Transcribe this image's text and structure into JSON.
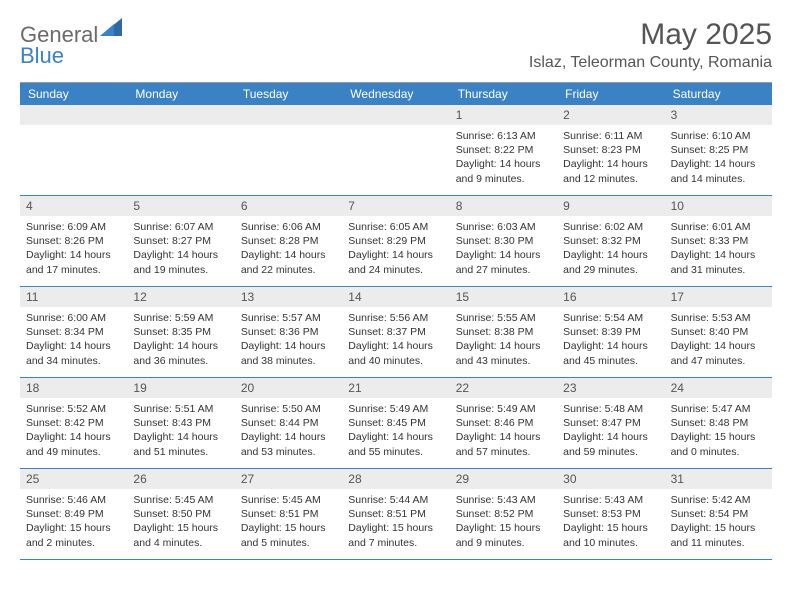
{
  "logo": {
    "line1": "General",
    "line2": "Blue"
  },
  "title": "May 2025",
  "location": "Islaz, Teleorman County, Romania",
  "colors": {
    "header_bg": "#3b82c4",
    "daynum_bg": "#ececec",
    "border": "#3b82c4",
    "text": "#333333",
    "background": "#ffffff"
  },
  "day_labels": [
    "Sunday",
    "Monday",
    "Tuesday",
    "Wednesday",
    "Thursday",
    "Friday",
    "Saturday"
  ],
  "weeks": [
    [
      null,
      null,
      null,
      null,
      {
        "n": "1",
        "sr": "Sunrise: 6:13 AM",
        "ss": "Sunset: 8:22 PM",
        "dl": "Daylight: 14 hours and 9 minutes."
      },
      {
        "n": "2",
        "sr": "Sunrise: 6:11 AM",
        "ss": "Sunset: 8:23 PM",
        "dl": "Daylight: 14 hours and 12 minutes."
      },
      {
        "n": "3",
        "sr": "Sunrise: 6:10 AM",
        "ss": "Sunset: 8:25 PM",
        "dl": "Daylight: 14 hours and 14 minutes."
      }
    ],
    [
      {
        "n": "4",
        "sr": "Sunrise: 6:09 AM",
        "ss": "Sunset: 8:26 PM",
        "dl": "Daylight: 14 hours and 17 minutes."
      },
      {
        "n": "5",
        "sr": "Sunrise: 6:07 AM",
        "ss": "Sunset: 8:27 PM",
        "dl": "Daylight: 14 hours and 19 minutes."
      },
      {
        "n": "6",
        "sr": "Sunrise: 6:06 AM",
        "ss": "Sunset: 8:28 PM",
        "dl": "Daylight: 14 hours and 22 minutes."
      },
      {
        "n": "7",
        "sr": "Sunrise: 6:05 AM",
        "ss": "Sunset: 8:29 PM",
        "dl": "Daylight: 14 hours and 24 minutes."
      },
      {
        "n": "8",
        "sr": "Sunrise: 6:03 AM",
        "ss": "Sunset: 8:30 PM",
        "dl": "Daylight: 14 hours and 27 minutes."
      },
      {
        "n": "9",
        "sr": "Sunrise: 6:02 AM",
        "ss": "Sunset: 8:32 PM",
        "dl": "Daylight: 14 hours and 29 minutes."
      },
      {
        "n": "10",
        "sr": "Sunrise: 6:01 AM",
        "ss": "Sunset: 8:33 PM",
        "dl": "Daylight: 14 hours and 31 minutes."
      }
    ],
    [
      {
        "n": "11",
        "sr": "Sunrise: 6:00 AM",
        "ss": "Sunset: 8:34 PM",
        "dl": "Daylight: 14 hours and 34 minutes."
      },
      {
        "n": "12",
        "sr": "Sunrise: 5:59 AM",
        "ss": "Sunset: 8:35 PM",
        "dl": "Daylight: 14 hours and 36 minutes."
      },
      {
        "n": "13",
        "sr": "Sunrise: 5:57 AM",
        "ss": "Sunset: 8:36 PM",
        "dl": "Daylight: 14 hours and 38 minutes."
      },
      {
        "n": "14",
        "sr": "Sunrise: 5:56 AM",
        "ss": "Sunset: 8:37 PM",
        "dl": "Daylight: 14 hours and 40 minutes."
      },
      {
        "n": "15",
        "sr": "Sunrise: 5:55 AM",
        "ss": "Sunset: 8:38 PM",
        "dl": "Daylight: 14 hours and 43 minutes."
      },
      {
        "n": "16",
        "sr": "Sunrise: 5:54 AM",
        "ss": "Sunset: 8:39 PM",
        "dl": "Daylight: 14 hours and 45 minutes."
      },
      {
        "n": "17",
        "sr": "Sunrise: 5:53 AM",
        "ss": "Sunset: 8:40 PM",
        "dl": "Daylight: 14 hours and 47 minutes."
      }
    ],
    [
      {
        "n": "18",
        "sr": "Sunrise: 5:52 AM",
        "ss": "Sunset: 8:42 PM",
        "dl": "Daylight: 14 hours and 49 minutes."
      },
      {
        "n": "19",
        "sr": "Sunrise: 5:51 AM",
        "ss": "Sunset: 8:43 PM",
        "dl": "Daylight: 14 hours and 51 minutes."
      },
      {
        "n": "20",
        "sr": "Sunrise: 5:50 AM",
        "ss": "Sunset: 8:44 PM",
        "dl": "Daylight: 14 hours and 53 minutes."
      },
      {
        "n": "21",
        "sr": "Sunrise: 5:49 AM",
        "ss": "Sunset: 8:45 PM",
        "dl": "Daylight: 14 hours and 55 minutes."
      },
      {
        "n": "22",
        "sr": "Sunrise: 5:49 AM",
        "ss": "Sunset: 8:46 PM",
        "dl": "Daylight: 14 hours and 57 minutes."
      },
      {
        "n": "23",
        "sr": "Sunrise: 5:48 AM",
        "ss": "Sunset: 8:47 PM",
        "dl": "Daylight: 14 hours and 59 minutes."
      },
      {
        "n": "24",
        "sr": "Sunrise: 5:47 AM",
        "ss": "Sunset: 8:48 PM",
        "dl": "Daylight: 15 hours and 0 minutes."
      }
    ],
    [
      {
        "n": "25",
        "sr": "Sunrise: 5:46 AM",
        "ss": "Sunset: 8:49 PM",
        "dl": "Daylight: 15 hours and 2 minutes."
      },
      {
        "n": "26",
        "sr": "Sunrise: 5:45 AM",
        "ss": "Sunset: 8:50 PM",
        "dl": "Daylight: 15 hours and 4 minutes."
      },
      {
        "n": "27",
        "sr": "Sunrise: 5:45 AM",
        "ss": "Sunset: 8:51 PM",
        "dl": "Daylight: 15 hours and 5 minutes."
      },
      {
        "n": "28",
        "sr": "Sunrise: 5:44 AM",
        "ss": "Sunset: 8:51 PM",
        "dl": "Daylight: 15 hours and 7 minutes."
      },
      {
        "n": "29",
        "sr": "Sunrise: 5:43 AM",
        "ss": "Sunset: 8:52 PM",
        "dl": "Daylight: 15 hours and 9 minutes."
      },
      {
        "n": "30",
        "sr": "Sunrise: 5:43 AM",
        "ss": "Sunset: 8:53 PM",
        "dl": "Daylight: 15 hours and 10 minutes."
      },
      {
        "n": "31",
        "sr": "Sunrise: 5:42 AM",
        "ss": "Sunset: 8:54 PM",
        "dl": "Daylight: 15 hours and 11 minutes."
      }
    ]
  ]
}
